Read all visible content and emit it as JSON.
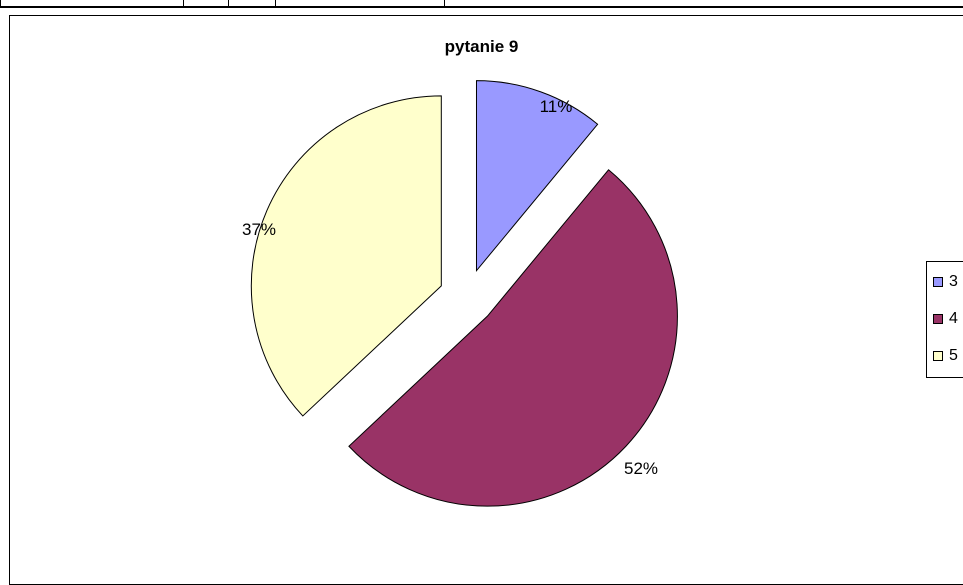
{
  "chart_data": {
    "type": "pie",
    "title": "pytanie 9",
    "slices": [
      {
        "label": "3",
        "value": 11,
        "data_label": "11%",
        "color": "#9999FF"
      },
      {
        "label": "4",
        "value": 52,
        "data_label": "52%",
        "color": "#993366"
      },
      {
        "label": "5",
        "value": 37,
        "data_label": "37%",
        "color": "#FFFFCC"
      }
    ],
    "legend_position": "right",
    "exploded": true
  }
}
